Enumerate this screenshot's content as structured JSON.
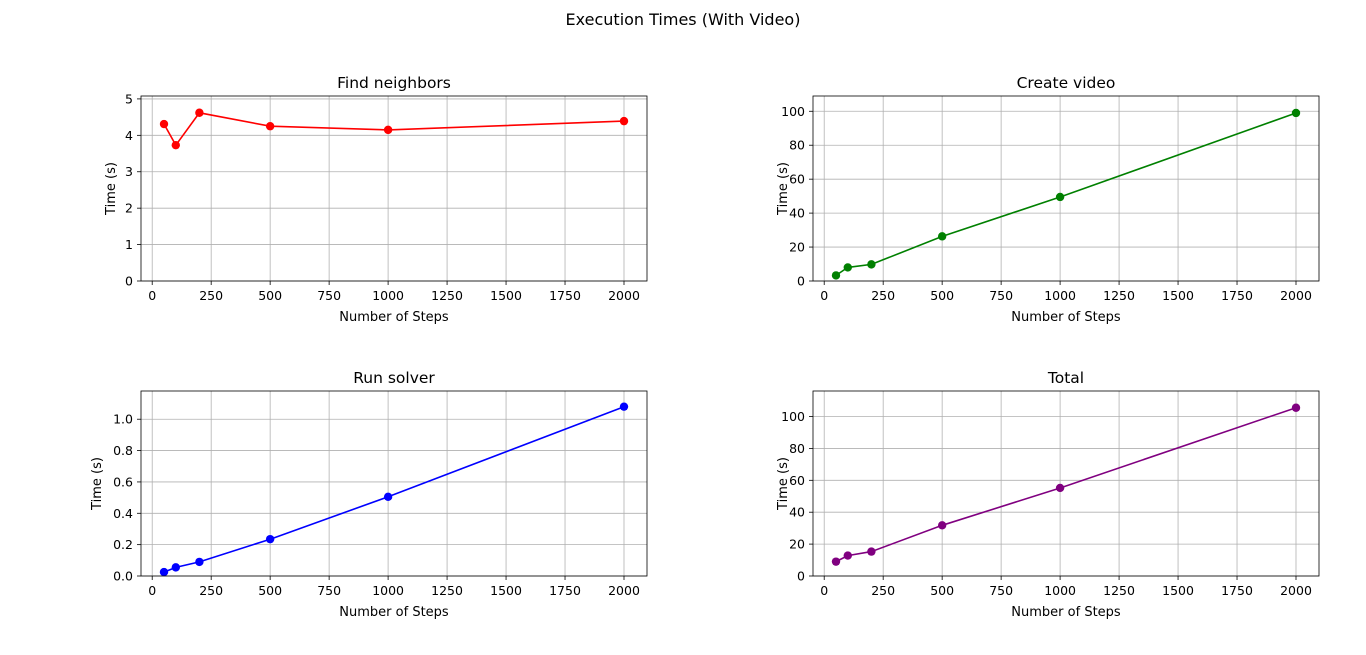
{
  "figure": {
    "title": "Execution Times (With Video)"
  },
  "chart_data": [
    {
      "type": "line",
      "title": "Find neighbors",
      "xlabel": "Number of Steps",
      "ylabel": "Time (s)",
      "color": "#ff0000",
      "x": [
        50,
        100,
        200,
        500,
        1000,
        2000
      ],
      "y": [
        4.31,
        3.73,
        4.62,
        4.25,
        4.15,
        4.39
      ],
      "xlim": [
        -47.5,
        2097.5
      ],
      "ylim": [
        0,
        5.08
      ],
      "xticks": [
        0,
        250,
        500,
        750,
        1000,
        1250,
        1500,
        1750,
        2000
      ],
      "yticks": [
        0,
        1,
        2,
        3,
        4,
        5
      ],
      "grid": true
    },
    {
      "type": "line",
      "title": "Create video",
      "xlabel": "Number of Steps",
      "ylabel": "Time (s)",
      "color": "#008000",
      "x": [
        50,
        100,
        200,
        500,
        1000,
        2000
      ],
      "y": [
        3.3,
        8.0,
        9.8,
        26.3,
        49.5,
        99.0
      ],
      "xlim": [
        -47.5,
        2097.5
      ],
      "ylim": [
        0,
        109
      ],
      "xticks": [
        0,
        250,
        500,
        750,
        1000,
        1250,
        1500,
        1750,
        2000
      ],
      "yticks": [
        0,
        20,
        40,
        60,
        80,
        100
      ],
      "grid": true
    },
    {
      "type": "line",
      "title": "Run solver",
      "xlabel": "Number of Steps",
      "ylabel": "Time (s)",
      "color": "#0000ff",
      "x": [
        50,
        100,
        200,
        500,
        1000,
        2000
      ],
      "y": [
        0.025,
        0.055,
        0.09,
        0.235,
        0.505,
        1.08
      ],
      "xlim": [
        -47.5,
        2097.5
      ],
      "ylim": [
        0,
        1.18
      ],
      "xticks": [
        0,
        250,
        500,
        750,
        1000,
        1250,
        1500,
        1750,
        2000
      ],
      "yticks": [
        0.0,
        0.2,
        0.4,
        0.6,
        0.8,
        1.0
      ],
      "ytick_labels": [
        "0.0",
        "0.2",
        "0.4",
        "0.6",
        "0.8",
        "1.0"
      ],
      "grid": true
    },
    {
      "type": "line",
      "title": "Total",
      "xlabel": "Number of Steps",
      "ylabel": "Time (s)",
      "color": "#800080",
      "x": [
        50,
        100,
        200,
        500,
        1000,
        2000
      ],
      "y": [
        9.0,
        12.8,
        15.3,
        31.8,
        55.2,
        105.5
      ],
      "xlim": [
        -47.5,
        2097.5
      ],
      "ylim": [
        0,
        116
      ],
      "xticks": [
        0,
        250,
        500,
        750,
        1000,
        1250,
        1500,
        1750,
        2000
      ],
      "yticks": [
        0,
        20,
        40,
        60,
        80,
        100
      ],
      "grid": true
    }
  ]
}
